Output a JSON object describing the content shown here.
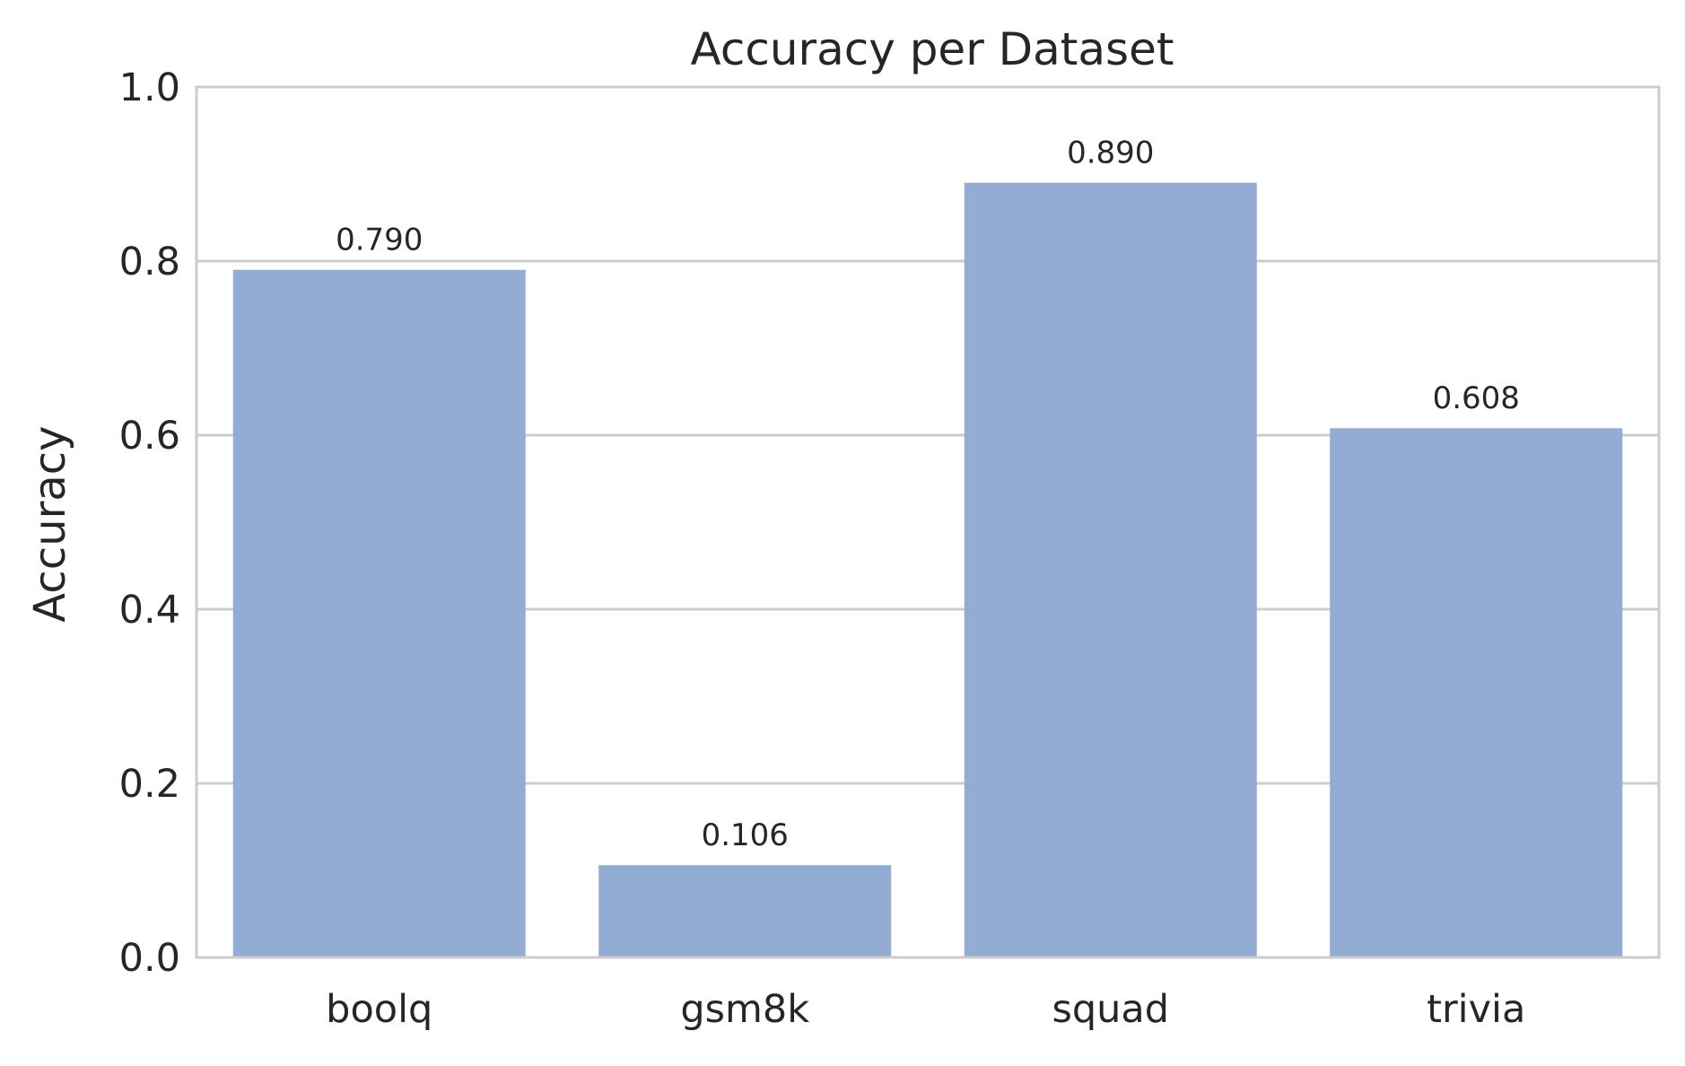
{
  "chart_data": {
    "type": "bar",
    "title": "Accuracy per Dataset",
    "xlabel": "",
    "ylabel": "Accuracy",
    "categories": [
      "boolq",
      "gsm8k",
      "squad",
      "trivia"
    ],
    "values": [
      0.79,
      0.106,
      0.89,
      0.608
    ],
    "value_labels": [
      "0.790",
      "0.106",
      "0.890",
      "0.608"
    ],
    "ylim": [
      0,
      1.0
    ],
    "yticks": [
      0.0,
      0.2,
      0.4,
      0.6,
      0.8,
      1.0
    ],
    "ytick_labels": [
      "0.0",
      "0.2",
      "0.4",
      "0.6",
      "0.8",
      "1.0"
    ],
    "grid": true,
    "bar_color": "#92acd4",
    "grid_color": "#cccccc",
    "text_color": "#262626"
  }
}
